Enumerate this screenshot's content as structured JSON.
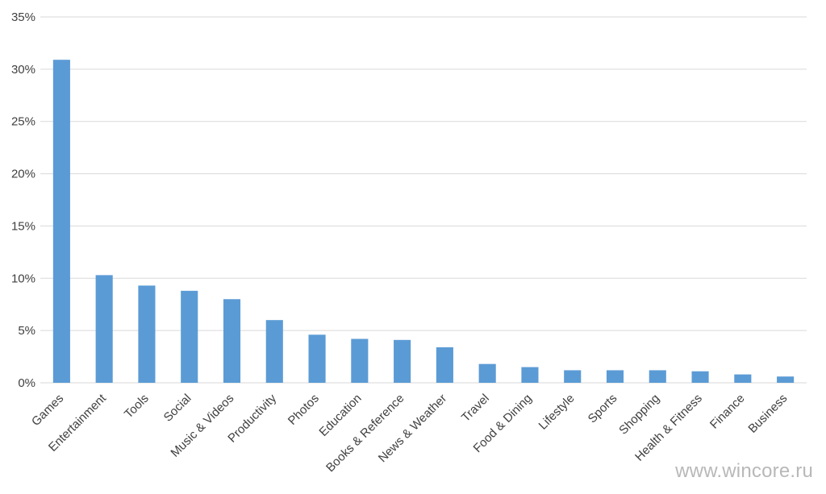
{
  "chart_data": {
    "type": "bar",
    "categories": [
      "Games",
      "Entertainment",
      "Tools",
      "Social",
      "Music & Videos",
      "Productivity",
      "Photos",
      "Education",
      "Books & Reference",
      "News & Weather",
      "Travel",
      "Food & Dining",
      "Lifestyle",
      "Sports",
      "Shopping",
      "Health & Fitness",
      "Finance",
      "Business"
    ],
    "values": [
      30.9,
      10.3,
      9.3,
      8.8,
      8.0,
      6.0,
      4.6,
      4.2,
      4.1,
      3.4,
      1.8,
      1.5,
      1.2,
      1.2,
      1.2,
      1.1,
      0.8,
      0.6
    ],
    "ylim": [
      0,
      35
    ],
    "yticks": [
      0,
      5,
      10,
      15,
      20,
      25,
      30,
      35
    ],
    "ytick_labels": [
      "0%",
      "5%",
      "10%",
      "15%",
      "20%",
      "25%",
      "30%",
      "35%"
    ],
    "grid": true,
    "bar_color": "#5b9bd5"
  },
  "watermark": "www.wincore.ru"
}
